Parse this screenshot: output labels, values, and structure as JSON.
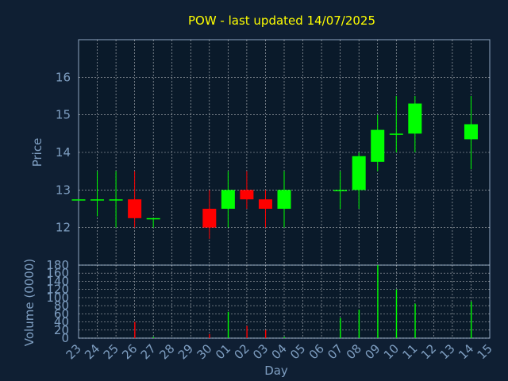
{
  "colors": {
    "background": "#0f1f33",
    "plot_background": "#0a1a2a",
    "up": "#00ff00",
    "down": "#ff0000",
    "title": "#ffff00",
    "axis_text": "#7f9fc2",
    "grid": "#ffffff"
  },
  "chart_data": [
    {
      "type": "candlestick",
      "title": "POW - last updated 14/07/2025",
      "xlabel": "",
      "ylabel": "Price",
      "ylim": [
        11,
        17
      ],
      "yticks": [
        12,
        13,
        14,
        15,
        16
      ],
      "grid": true,
      "x": [
        "23",
        "24",
        "25",
        "26",
        "27",
        "28",
        "29",
        "30",
        "01",
        "02",
        "03",
        "04",
        "05",
        "06",
        "07",
        "08",
        "09",
        "10",
        "11",
        "12",
        "13",
        "14",
        "15"
      ],
      "candles": [
        {
          "day": "23",
          "open": 12.75,
          "high": 12.75,
          "low": 12.75,
          "close": 12.75
        },
        {
          "day": "24",
          "open": 12.75,
          "high": 13.5,
          "low": 12.3,
          "close": 12.75
        },
        {
          "day": "25",
          "open": 12.75,
          "high": 13.5,
          "low": 12.0,
          "close": 12.75
        },
        {
          "day": "26",
          "open": 12.75,
          "high": 13.5,
          "low": 12.0,
          "close": 12.25
        },
        {
          "day": "27",
          "open": 12.25,
          "high": 12.25,
          "low": 12.0,
          "close": 12.25
        },
        {
          "day": "30",
          "open": 12.5,
          "high": 13.0,
          "low": 11.7,
          "close": 12.0
        },
        {
          "day": "01",
          "open": 12.5,
          "high": 13.5,
          "low": 12.0,
          "close": 13.0
        },
        {
          "day": "02",
          "open": 13.0,
          "high": 13.5,
          "low": 12.5,
          "close": 12.75
        },
        {
          "day": "03",
          "open": 12.75,
          "high": 13.0,
          "low": 12.0,
          "close": 12.5
        },
        {
          "day": "04",
          "open": 12.5,
          "high": 13.5,
          "low": 12.0,
          "close": 13.0
        },
        {
          "day": "07",
          "open": 13.0,
          "high": 13.5,
          "low": 12.5,
          "close": 13.0
        },
        {
          "day": "08",
          "open": 13.0,
          "high": 14.0,
          "low": 12.5,
          "close": 13.9
        },
        {
          "day": "09",
          "open": 13.75,
          "high": 15.0,
          "low": 13.5,
          "close": 14.6
        },
        {
          "day": "10",
          "open": 14.5,
          "high": 15.5,
          "low": 14.0,
          "close": 14.5
        },
        {
          "day": "11",
          "open": 14.5,
          "high": 15.5,
          "low": 14.0,
          "close": 15.3
        },
        {
          "day": "14",
          "open": 14.35,
          "high": 15.5,
          "low": 13.55,
          "close": 14.75
        }
      ]
    },
    {
      "type": "bar",
      "xlabel": "Day",
      "ylabel": "Volume (0000)",
      "ylim": [
        0,
        180
      ],
      "yticks": [
        0,
        20,
        40,
        60,
        80,
        100,
        120,
        140,
        160,
        180
      ],
      "grid": true,
      "categories": [
        "23",
        "24",
        "25",
        "26",
        "27",
        "28",
        "29",
        "30",
        "01",
        "02",
        "03",
        "04",
        "05",
        "06",
        "07",
        "08",
        "09",
        "10",
        "11",
        "12",
        "13",
        "14",
        "15"
      ],
      "values": [
        0,
        0,
        0,
        40,
        3,
        0,
        0,
        10,
        65,
        30,
        20,
        3,
        0,
        0,
        50,
        70,
        180,
        120,
        85,
        0,
        0,
        90,
        0
      ]
    }
  ]
}
